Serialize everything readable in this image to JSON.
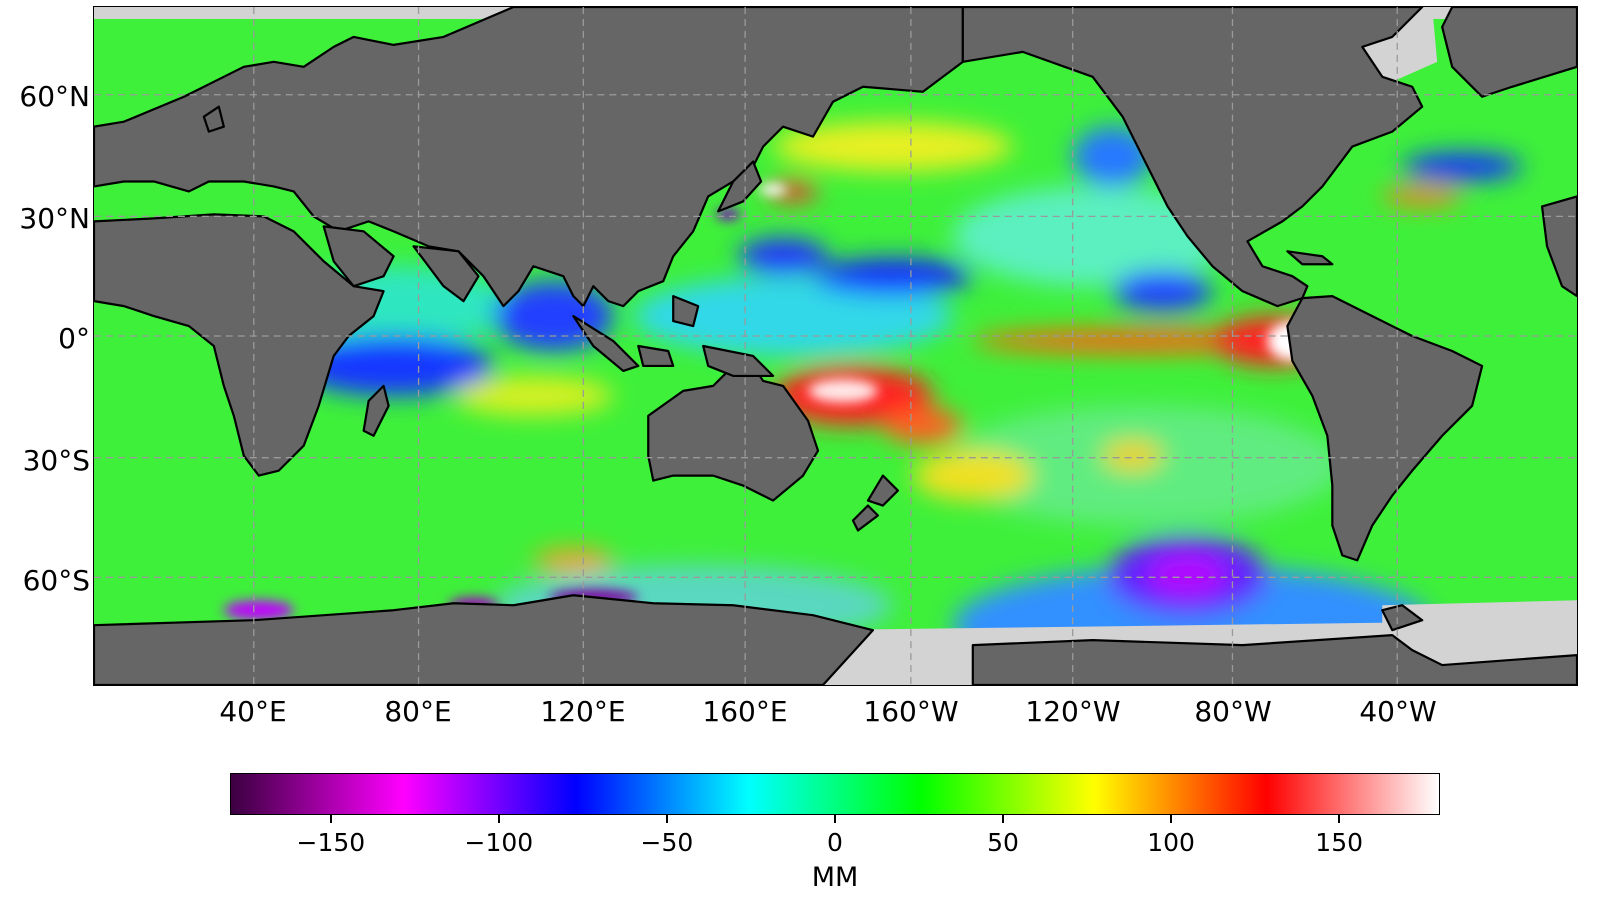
{
  "map": {
    "lat_labels": [
      "60°N",
      "30°N",
      "0°",
      "30°S",
      "60°S"
    ],
    "lon_labels": [
      "40°E",
      "80°E",
      "120°E",
      "160°E",
      "160°W",
      "120°W",
      "80°W",
      "40°W"
    ],
    "colors": {
      "land": "#666666",
      "ice": "#d3d3d3",
      "ocean_base": "#3ef03a",
      "coast": "#000000",
      "grid": "#9a9a9a"
    }
  },
  "colorbar": {
    "unit": "MM",
    "tick_labels": [
      "−150",
      "−100",
      "−50",
      "0",
      "50",
      "100",
      "150"
    ],
    "tick_values": [
      -150,
      -100,
      -50,
      0,
      50,
      100,
      150
    ],
    "range": [
      -180,
      180
    ],
    "colormap": [
      "#3b0040",
      "#ff00ff",
      "#0000ff",
      "#00ffff",
      "#00ff00",
      "#ffff00",
      "#ff0000",
      "#ffffff"
    ]
  }
}
